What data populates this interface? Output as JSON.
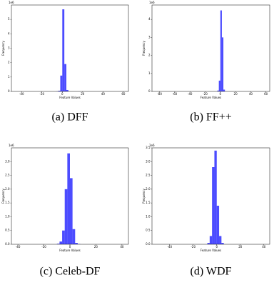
{
  "chart_data": [
    {
      "type": "histogram",
      "caption": "(a) DFF",
      "xlabel": "Feature Values",
      "ylabel": "Frequency",
      "y_offset_label": "1e6",
      "bins": [
        -6,
        -4,
        -2,
        0,
        2,
        4,
        6
      ],
      "counts": [
        0.01,
        0.05,
        1.1,
        5.7,
        1.9,
        0.1
      ],
      "color": "#0000ff",
      "alpha": 0.7,
      "xlim": [
        -50,
        65
      ],
      "xticks": [
        -40,
        -20,
        0,
        20,
        40,
        60
      ],
      "ylim": [
        0,
        6
      ],
      "yticks": [
        0,
        1,
        2,
        3,
        4,
        5
      ]
    },
    {
      "type": "histogram",
      "caption": "(b) FF++",
      "xlabel": "Feature Values",
      "ylabel": "Frequency",
      "y_offset_label": "1e6",
      "bins": [
        -4,
        -2,
        0,
        2,
        4,
        6
      ],
      "counts": [
        0.05,
        0.6,
        4.5,
        3.0,
        0.1
      ],
      "color": "#0000ff",
      "alpha": 0.7,
      "xlim": [
        -90,
        65
      ],
      "xticks": [
        -80,
        -60,
        -40,
        -20,
        0,
        20,
        40,
        60
      ],
      "ylim": [
        0,
        4.8
      ],
      "yticks": [
        0,
        1,
        2,
        3,
        4
      ]
    },
    {
      "type": "histogram",
      "caption": "(c) Celeb-DF",
      "xlabel": "Feature Values",
      "ylabel": "Frequency",
      "y_offset_label": "1e6",
      "bins": [
        -10,
        -8,
        -6,
        -4,
        -2,
        0,
        2,
        4,
        6,
        8
      ],
      "counts": [
        0.02,
        0.1,
        0.5,
        2.0,
        3.3,
        2.4,
        0.55,
        0.05,
        0.01
      ],
      "color": "#0000ff",
      "alpha": 0.7,
      "xlim": [
        -45,
        45
      ],
      "xticks": [
        -40,
        -20,
        0,
        20,
        40
      ],
      "ylim": [
        0,
        3.5
      ],
      "yticks": [
        {
          "value": 0,
          "label": "0.0"
        },
        {
          "value": 0.5,
          "label": "0.5"
        },
        {
          "value": 1,
          "label": "1.0"
        },
        {
          "value": 1.5,
          "label": "1.5"
        },
        {
          "value": 2,
          "label": "2.0"
        },
        {
          "value": 2.5,
          "label": "2.5"
        },
        {
          "value": 3,
          "label": "3.0"
        }
      ]
    },
    {
      "type": "histogram",
      "caption": "(d) WDF",
      "xlabel": "Feature Values",
      "ylabel": "Frequency",
      "y_offset_label": "1e6",
      "bins": [
        -8,
        -6,
        -4,
        -2,
        0,
        2,
        4,
        6
      ],
      "counts": [
        0.05,
        0.3,
        2.8,
        3.4,
        1.4,
        0.3,
        0.05
      ],
      "color": "#0000ff",
      "alpha": 0.7,
      "xlim": [
        -55,
        45
      ],
      "xticks": [
        -40,
        -20,
        0,
        20,
        40
      ],
      "ylim": [
        0,
        3.5
      ],
      "yticks": [
        {
          "value": 0,
          "label": "0.0"
        },
        {
          "value": 0.5,
          "label": "0.5"
        },
        {
          "value": 1,
          "label": "1.0"
        },
        {
          "value": 1.5,
          "label": "1.5"
        },
        {
          "value": 2,
          "label": "2.0"
        },
        {
          "value": 2.5,
          "label": "2.5"
        },
        {
          "value": 3,
          "label": "3.0"
        },
        {
          "value": 3.5,
          "label": "3.5"
        }
      ]
    }
  ]
}
